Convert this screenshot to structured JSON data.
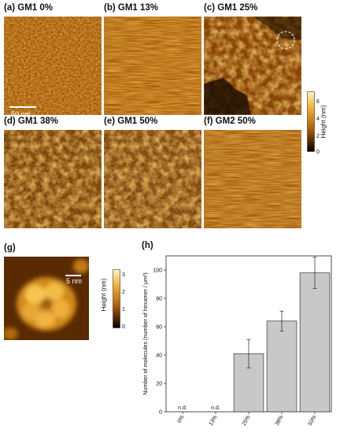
{
  "panels": [
    {
      "id": "a",
      "label": "(a) GM1 0%"
    },
    {
      "id": "b",
      "label": "(b) GM1 13%"
    },
    {
      "id": "c",
      "label": "(c) GM1 25%"
    },
    {
      "id": "d",
      "label": "(d) GM1 38%"
    },
    {
      "id": "e",
      "label": "(e) GM1 50%"
    },
    {
      "id": "f",
      "label": "(f) GM2 50%"
    }
  ],
  "scale_bar_main": "50 nm",
  "colorbar_main": {
    "title": "Height (nm)",
    "ticks": [
      "0",
      "2",
      "4",
      "6"
    ],
    "range": [
      0,
      7
    ]
  },
  "panel_g": {
    "label": "(g)",
    "scale_bar": "5 nm"
  },
  "colorbar_g": {
    "title": "Height (nm)",
    "ticks": [
      "0",
      "1",
      "2",
      "3"
    ],
    "range": [
      0,
      3.3
    ]
  },
  "panel_h": {
    "label": "(h)"
  },
  "colors": {
    "afm_dark": "#3a1a00",
    "afm_mid": "#b8620a",
    "afm_light": "#f4b83a",
    "bar_fill": "#c8c8c8"
  },
  "chart_data": {
    "type": "bar",
    "categories": [
      "0%",
      "13%",
      "25%",
      "38%",
      "50%"
    ],
    "values": [
      0,
      0,
      41,
      64,
      98
    ],
    "errors": [
      0,
      0,
      10,
      7,
      11
    ],
    "annotations": [
      "n.d.",
      "n.d.",
      "",
      "",
      ""
    ],
    "ylabel": "Number of molecules (number of hexamer / µm²)",
    "ylim": [
      0,
      110
    ],
    "yticks": [
      0,
      20,
      40,
      60,
      80,
      100
    ],
    "grid": false
  }
}
